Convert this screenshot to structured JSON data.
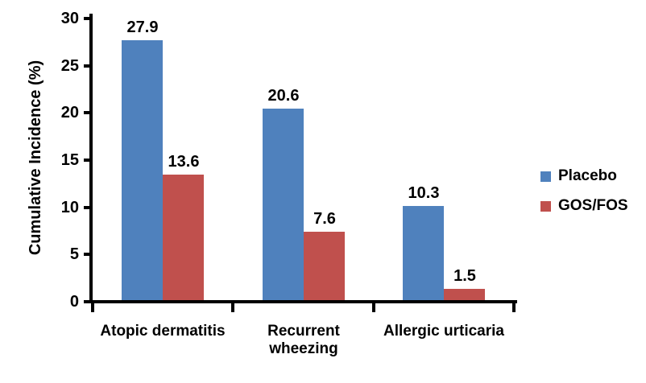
{
  "chart_data": {
    "type": "bar",
    "title": "",
    "xlabel": "",
    "ylabel": "Cumulative Incidence (%)",
    "categories": [
      "Atopic dermatitis",
      "Recurrent\nwheezing",
      "Allergic urticaria"
    ],
    "series": [
      {
        "name": "Placebo",
        "color": "#4F81BD",
        "values": [
          27.9,
          20.6,
          10.3
        ]
      },
      {
        "name": "GOS/FOS",
        "color": "#C0504D",
        "values": [
          13.6,
          7.6,
          1.5
        ]
      }
    ],
    "ylim": [
      0,
      30
    ],
    "yticks": [
      0,
      5,
      10,
      15,
      20,
      25,
      30
    ],
    "grid": false,
    "legend_position": "right",
    "data_labels": true,
    "axis_color": "#000000",
    "text_color": "#000000",
    "background_color": "#FFFFFF"
  }
}
